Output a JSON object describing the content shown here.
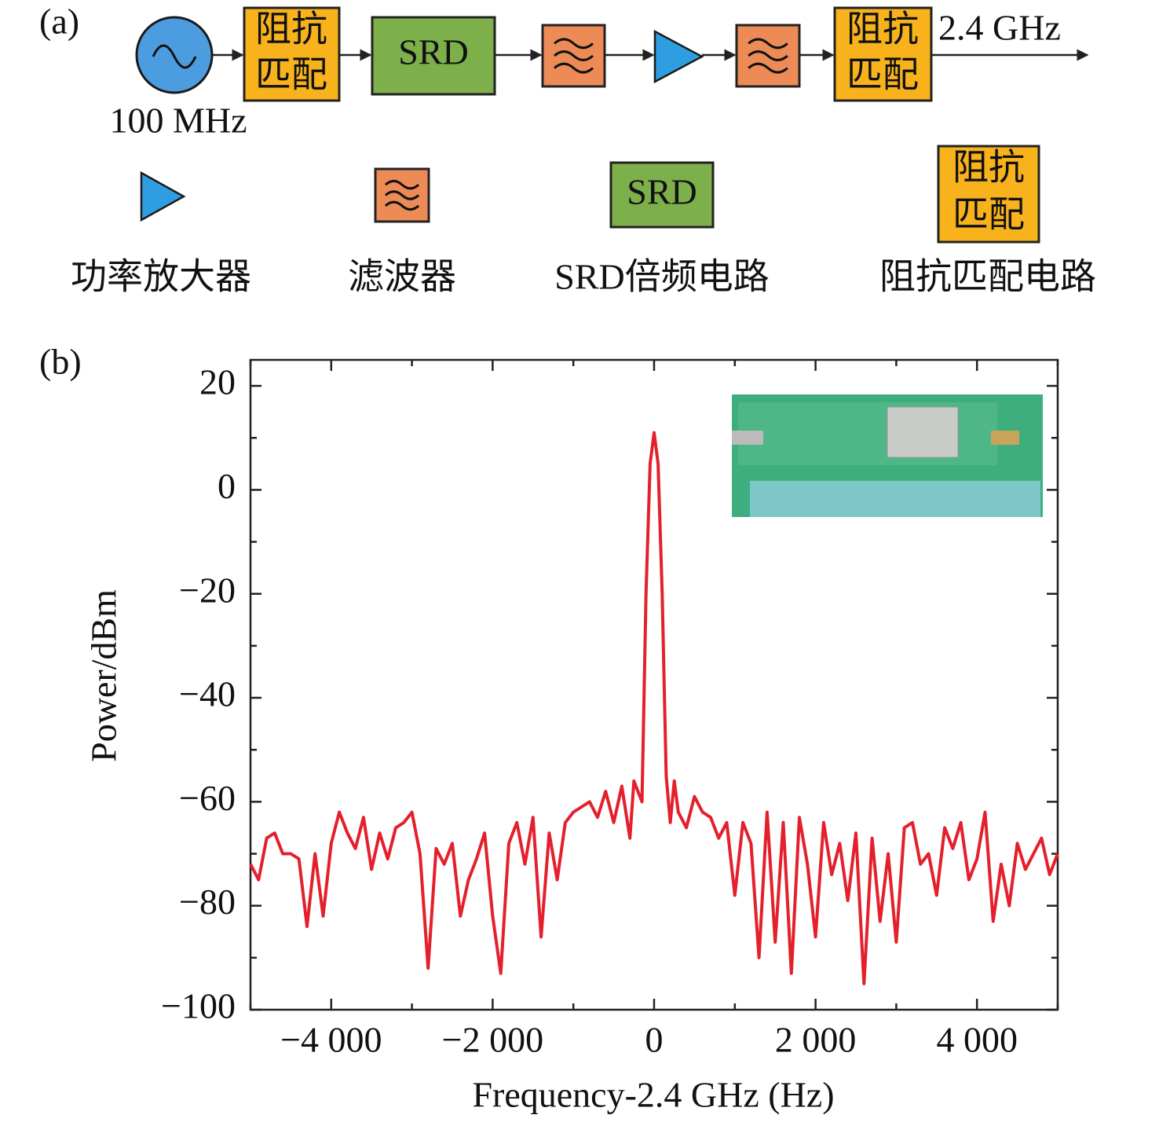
{
  "diagram": {
    "label": "(a)",
    "input": "100 MHz",
    "output": "2.4 GHz",
    "blocks": [
      [
        "阻抗",
        "匹配"
      ],
      [
        "SRD"
      ],
      [
        "阻抗",
        "匹配"
      ]
    ],
    "legend": {
      "symbols": [
        [
          "SRD"
        ],
        [
          "阻抗",
          "匹配"
        ]
      ],
      "labels": [
        "功率放大器",
        "滤波器",
        "SRD倍频电路",
        "阻抗匹配电路"
      ]
    }
  },
  "chart_data": {
    "type": "line",
    "label": "(b)",
    "xlabel": "Frequency-2.4 GHz (Hz)",
    "ylabel": "Power/dBm",
    "color": "#e4202c",
    "xlim": [
      -5000,
      5000
    ],
    "ylim": [
      -100,
      25
    ],
    "xticks": [
      {
        "value": -4000,
        "label": "−4 000"
      },
      {
        "value": -2000,
        "label": "−2 000"
      },
      0,
      {
        "value": 2000,
        "label": "2 000"
      },
      {
        "value": 4000,
        "label": "4 000"
      }
    ],
    "yticks": [
      {
        "value": -100,
        "label": "−100"
      },
      {
        "value": -80,
        "label": "−80"
      },
      {
        "value": -60,
        "label": "−60"
      },
      {
        "value": -40,
        "label": "−40"
      },
      {
        "value": -20,
        "label": "−20"
      },
      0,
      20
    ],
    "xminorticks": [
      -5000,
      -3000,
      -1000,
      1000,
      3000,
      5000
    ],
    "yminorticks": [
      -90,
      -70,
      -50,
      -30,
      -10,
      10
    ],
    "x": [
      -5000,
      -4900,
      -4800,
      -4700,
      -4600,
      -4500,
      -4400,
      -4300,
      -4200,
      -4100,
      -4000,
      -3900,
      -3800,
      -3700,
      -3600,
      -3500,
      -3400,
      -3300,
      -3200,
      -3100,
      -3000,
      -2900,
      -2800,
      -2700,
      -2600,
      -2500,
      -2400,
      -2300,
      -2200,
      -2100,
      -2000,
      -1900,
      -1800,
      -1700,
      -1600,
      -1500,
      -1400,
      -1300,
      -1200,
      -1100,
      -1000,
      -900,
      -800,
      -700,
      -600,
      -500,
      -400,
      -300,
      -250,
      -200,
      -150,
      -100,
      -50,
      0,
      50,
      100,
      150,
      200,
      250,
      300,
      400,
      500,
      600,
      700,
      800,
      900,
      1000,
      1100,
      1200,
      1300,
      1400,
      1500,
      1600,
      1700,
      1800,
      1900,
      2000,
      2100,
      2200,
      2300,
      2400,
      2500,
      2600,
      2700,
      2800,
      2900,
      3000,
      3100,
      3200,
      3300,
      3400,
      3500,
      3600,
      3700,
      3800,
      3900,
      4000,
      4100,
      4200,
      4300,
      4400,
      4500,
      4600,
      4700,
      4800,
      4900,
      5000
    ],
    "values": [
      -72,
      -75,
      -67,
      -66,
      -70,
      -70,
      -71,
      -84,
      -70,
      -82,
      -68,
      -62,
      -66,
      -69,
      -63,
      -73,
      -66,
      -71,
      -65,
      -64,
      -62,
      -70,
      -92,
      -69,
      -72,
      -68,
      -82,
      -75,
      -71,
      -66,
      -82,
      -93,
      -68,
      -64,
      -72,
      -63,
      -86,
      -66,
      -75,
      -64,
      -62,
      -61,
      -60,
      -63,
      -58,
      -64,
      -57,
      -67,
      -56,
      -58,
      -60,
      -20,
      5,
      11,
      5,
      -20,
      -55,
      -64,
      -56,
      -62,
      -65,
      -59,
      -62,
      -63,
      -67,
      -64,
      -78,
      -64,
      -68,
      -90,
      -62,
      -87,
      -64,
      -93,
      -63,
      -72,
      -86,
      -64,
      -74,
      -68,
      -79,
      -66,
      -95,
      -67,
      -83,
      -70,
      -87,
      -65,
      -64,
      -72,
      -70,
      -78,
      -65,
      -69,
      -64,
      -75,
      -71,
      -62,
      -83,
      -72,
      -80,
      -68,
      -73,
      -70,
      -67,
      -74,
      -70
    ]
  }
}
